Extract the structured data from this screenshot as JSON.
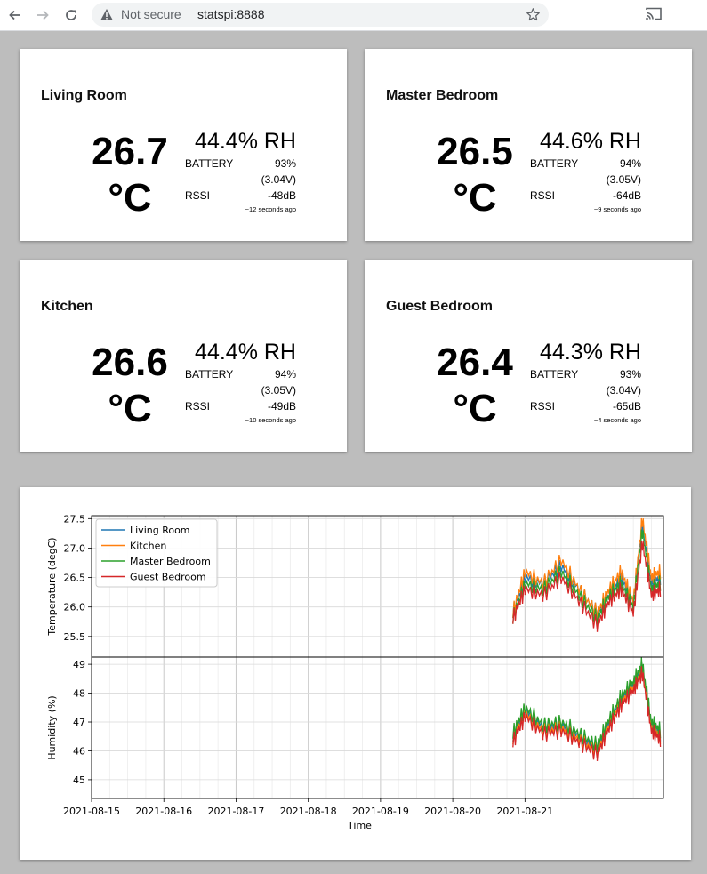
{
  "browser": {
    "security_label": "Not secure",
    "url": "statspi:8888"
  },
  "rooms": [
    {
      "name": "Living Room",
      "temp_value": "26.7",
      "temp_unit": "°C",
      "humidity": "44.4% RH",
      "battery_label": "BATTERY",
      "battery_pct": "93%",
      "battery_volt": "(3.04V)",
      "rssi_label": "RSSI",
      "rssi": "-48dB",
      "updated": "~12 seconds ago"
    },
    {
      "name": "Master Bedroom",
      "temp_value": "26.5",
      "temp_unit": "°C",
      "humidity": "44.6% RH",
      "battery_label": "BATTERY",
      "battery_pct": "94%",
      "battery_volt": "(3.05V)",
      "rssi_label": "RSSI",
      "rssi": "-64dB",
      "updated": "~9 seconds ago"
    },
    {
      "name": "Kitchen",
      "temp_value": "26.6",
      "temp_unit": "°C",
      "humidity": "44.4% RH",
      "battery_label": "BATTERY",
      "battery_pct": "94%",
      "battery_volt": "(3.05V)",
      "rssi_label": "RSSI",
      "rssi": "-49dB",
      "updated": "~10 seconds ago"
    },
    {
      "name": "Guest Bedroom",
      "temp_value": "26.4",
      "temp_unit": "°C",
      "humidity": "44.3% RH",
      "battery_label": "BATTERY",
      "battery_pct": "93%",
      "battery_volt": "(3.04V)",
      "rssi_label": "RSSI",
      "rssi": "-65dB",
      "updated": "~4 seconds ago"
    }
  ],
  "chart_data": [
    {
      "type": "line",
      "ylabel": "Temperature (degC)",
      "ylim": [
        25.15,
        27.55
      ],
      "yticks": [
        "25.5",
        "26.0",
        "26.5",
        "27.0",
        "27.5"
      ],
      "grid": true,
      "legend_position": "top-left",
      "series": [
        {
          "name": "Living Room",
          "color": "#1f77b4",
          "x": [
            "2021-08-20 20:00",
            "2021-08-21 00:00",
            "2021-08-21 06:00",
            "2021-08-21 12:00",
            "2021-08-21 18:00",
            "2021-08-22 00:00",
            "2021-08-22 04:00",
            "2021-08-22 08:00",
            "2021-08-22 12:00",
            "2021-08-22 15:00",
            "2021-08-22 18:00",
            "2021-08-22 21:00"
          ],
          "y": [
            25.9,
            26.5,
            26.4,
            26.7,
            26.3,
            25.9,
            26.2,
            26.5,
            26.1,
            27.4,
            26.4,
            26.5
          ]
        },
        {
          "name": "Kitchen",
          "color": "#ff7f0e",
          "x": [
            "2021-08-20 20:00",
            "2021-08-21 00:00",
            "2021-08-21 06:00",
            "2021-08-21 12:00",
            "2021-08-21 18:00",
            "2021-08-22 00:00",
            "2021-08-22 04:00",
            "2021-08-22 08:00",
            "2021-08-22 12:00",
            "2021-08-22 15:00",
            "2021-08-22 18:00",
            "2021-08-22 21:00"
          ],
          "y": [
            25.9,
            26.6,
            26.4,
            26.8,
            26.3,
            25.9,
            26.3,
            26.6,
            26.1,
            27.5,
            26.5,
            26.6
          ]
        },
        {
          "name": "Master Bedroom",
          "color": "#2ca02c",
          "x": [
            "2021-08-20 20:00",
            "2021-08-21 00:00",
            "2021-08-21 06:00",
            "2021-08-21 12:00",
            "2021-08-21 18:00",
            "2021-08-22 00:00",
            "2021-08-22 04:00",
            "2021-08-22 08:00",
            "2021-08-22 12:00",
            "2021-08-22 15:00",
            "2021-08-22 18:00",
            "2021-08-22 21:00"
          ],
          "y": [
            25.8,
            26.4,
            26.3,
            26.6,
            26.2,
            25.8,
            26.2,
            26.4,
            26.0,
            27.3,
            26.3,
            26.4
          ]
        },
        {
          "name": "Guest Bedroom",
          "color": "#d62728",
          "x": [
            "2021-08-20 20:00",
            "2021-08-21 00:00",
            "2021-08-21 06:00",
            "2021-08-21 12:00",
            "2021-08-21 18:00",
            "2021-08-22 00:00",
            "2021-08-22 04:00",
            "2021-08-22 08:00",
            "2021-08-22 12:00",
            "2021-08-22 15:00",
            "2021-08-22 18:00",
            "2021-08-22 21:00"
          ],
          "y": [
            25.8,
            26.3,
            26.2,
            26.5,
            26.1,
            25.7,
            26.1,
            26.3,
            25.9,
            27.1,
            26.2,
            26.3
          ]
        }
      ]
    },
    {
      "type": "line",
      "xlabel": "Time",
      "ylabel": "Humidity (%)",
      "ylim": [
        44.35,
        49.25
      ],
      "yticks": [
        "45",
        "46",
        "47",
        "48",
        "49"
      ],
      "xlim": [
        "2021-08-15",
        "2021-08-22 22:00"
      ],
      "xticks": [
        "2021-08-15",
        "2021-08-16",
        "2021-08-17",
        "2021-08-18",
        "2021-08-19",
        "2021-08-20",
        "2021-08-21"
      ],
      "grid": true,
      "series": [
        {
          "name": "Living Room",
          "color": "#1f77b4",
          "x": [
            "2021-08-20 20:00",
            "2021-08-21 00:00",
            "2021-08-21 06:00",
            "2021-08-21 12:00",
            "2021-08-21 18:00",
            "2021-08-22 00:00",
            "2021-08-22 04:00",
            "2021-08-22 08:00",
            "2021-08-22 12:00",
            "2021-08-22 15:00",
            "2021-08-22 18:00",
            "2021-08-22 21:00"
          ],
          "y": [
            46.5,
            47.4,
            46.8,
            46.9,
            46.5,
            46.1,
            47.0,
            47.8,
            48.3,
            48.9,
            46.9,
            46.6
          ]
        },
        {
          "name": "Kitchen",
          "color": "#ff7f0e",
          "x": [
            "2021-08-20 20:00",
            "2021-08-21 00:00",
            "2021-08-21 06:00",
            "2021-08-21 12:00",
            "2021-08-21 18:00",
            "2021-08-22 00:00",
            "2021-08-22 04:00",
            "2021-08-22 08:00",
            "2021-08-22 12:00",
            "2021-08-22 15:00",
            "2021-08-22 18:00",
            "2021-08-22 21:00"
          ],
          "y": [
            46.4,
            47.3,
            46.7,
            46.8,
            46.4,
            46.0,
            46.9,
            47.7,
            48.2,
            48.8,
            46.8,
            46.5
          ]
        },
        {
          "name": "Master Bedroom",
          "color": "#2ca02c",
          "x": [
            "2021-08-20 20:00",
            "2021-08-21 00:00",
            "2021-08-21 06:00",
            "2021-08-21 12:00",
            "2021-08-21 18:00",
            "2021-08-22 00:00",
            "2021-08-22 04:00",
            "2021-08-22 08:00",
            "2021-08-22 12:00",
            "2021-08-22 15:00",
            "2021-08-22 18:00",
            "2021-08-22 21:00"
          ],
          "y": [
            46.6,
            47.5,
            46.9,
            47.0,
            46.6,
            46.2,
            47.1,
            47.9,
            48.4,
            49.0,
            47.0,
            46.7
          ]
        },
        {
          "name": "Guest Bedroom",
          "color": "#d62728",
          "x": [
            "2021-08-20 20:00",
            "2021-08-21 00:00",
            "2021-08-21 06:00",
            "2021-08-21 12:00",
            "2021-08-21 18:00",
            "2021-08-22 00:00",
            "2021-08-22 04:00",
            "2021-08-22 08:00",
            "2021-08-22 12:00",
            "2021-08-22 15:00",
            "2021-08-22 18:00",
            "2021-08-22 21:00"
          ],
          "y": [
            46.3,
            47.2,
            46.6,
            46.7,
            46.3,
            45.9,
            46.8,
            47.6,
            48.1,
            48.7,
            46.7,
            46.4
          ]
        }
      ]
    }
  ]
}
